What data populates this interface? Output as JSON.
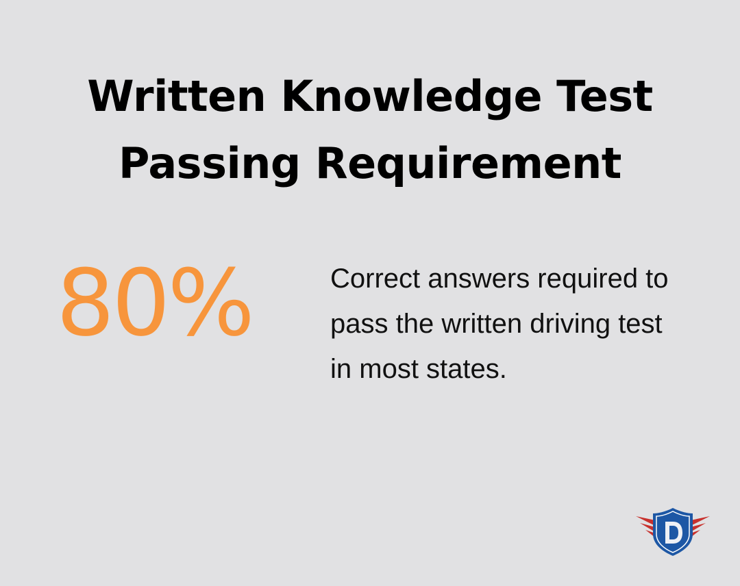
{
  "title": {
    "line1": "Written Knowledge Test",
    "line2": "Passing Requirement"
  },
  "stat": {
    "value": "80%",
    "color": "#f7953c"
  },
  "description": "Correct answers required to pass the written driving test in most states.",
  "logo": {
    "icon": "shield-wings-d-logo",
    "letter": "D",
    "colors": {
      "shield": "#1d57a5",
      "wings": "#c8312d"
    }
  }
}
